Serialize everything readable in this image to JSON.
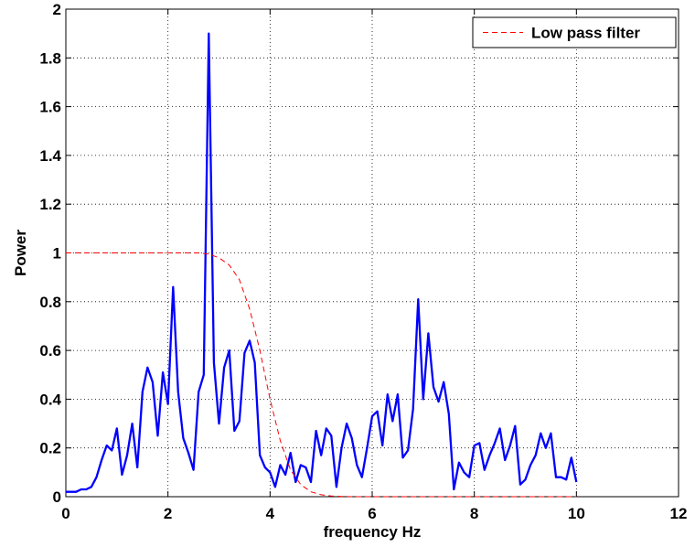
{
  "chart_data": {
    "type": "line",
    "title": "",
    "xlabel": "frequency Hz",
    "ylabel": "Power",
    "xlim": [
      0,
      12
    ],
    "ylim": [
      0,
      2
    ],
    "xticks": [
      0,
      2,
      4,
      6,
      8,
      10,
      12
    ],
    "yticks": [
      0,
      0.2,
      0.4,
      0.6,
      0.8,
      1,
      1.2,
      1.4,
      1.6,
      1.8,
      2
    ],
    "xtick_labels": [
      "0",
      "2",
      "4",
      "6",
      "8",
      "10",
      "12"
    ],
    "ytick_labels": [
      "0",
      "0.2",
      "0.4",
      "0.6",
      "0.8",
      "1",
      "1.2",
      "1.4",
      "1.6",
      "1.8",
      "2"
    ],
    "grid": true,
    "legend": {
      "placement": "top-right",
      "entries": [
        "Low pass filter"
      ]
    },
    "series": [
      {
        "name": "",
        "color": "#0000ff",
        "style": "solid",
        "x": [
          0,
          0.1,
          0.2,
          0.3,
          0.4,
          0.5,
          0.6,
          0.7,
          0.8,
          0.9,
          1.0,
          1.1,
          1.2,
          1.3,
          1.4,
          1.5,
          1.6,
          1.7,
          1.8,
          1.9,
          2.0,
          2.1,
          2.2,
          2.3,
          2.4,
          2.5,
          2.6,
          2.7,
          2.8,
          2.9,
          3.0,
          3.1,
          3.2,
          3.3,
          3.4,
          3.5,
          3.6,
          3.7,
          3.8,
          3.9,
          4.0,
          4.1,
          4.2,
          4.3,
          4.4,
          4.5,
          4.6,
          4.7,
          4.8,
          4.9,
          5.0,
          5.1,
          5.2,
          5.3,
          5.4,
          5.5,
          5.6,
          5.7,
          5.8,
          5.9,
          6.0,
          6.1,
          6.2,
          6.3,
          6.4,
          6.5,
          6.6,
          6.7,
          6.8,
          6.9,
          7.0,
          7.1,
          7.2,
          7.3,
          7.4,
          7.5,
          7.6,
          7.7,
          7.8,
          7.9,
          8.0,
          8.1,
          8.2,
          8.3,
          8.4,
          8.5,
          8.6,
          8.7,
          8.8,
          8.9,
          9.0,
          9.1,
          9.2,
          9.3,
          9.4,
          9.5,
          9.6,
          9.7,
          9.8,
          9.9,
          10.0
        ],
        "y": [
          0.02,
          0.02,
          0.02,
          0.03,
          0.03,
          0.04,
          0.08,
          0.15,
          0.21,
          0.19,
          0.28,
          0.09,
          0.17,
          0.3,
          0.12,
          0.43,
          0.53,
          0.47,
          0.25,
          0.51,
          0.38,
          0.86,
          0.43,
          0.24,
          0.18,
          0.11,
          0.43,
          0.5,
          1.9,
          0.55,
          0.3,
          0.53,
          0.6,
          0.27,
          0.31,
          0.59,
          0.64,
          0.55,
          0.17,
          0.12,
          0.1,
          0.04,
          0.13,
          0.09,
          0.18,
          0.06,
          0.13,
          0.12,
          0.06,
          0.27,
          0.17,
          0.28,
          0.25,
          0.04,
          0.2,
          0.3,
          0.24,
          0.13,
          0.08,
          0.2,
          0.33,
          0.35,
          0.21,
          0.42,
          0.31,
          0.42,
          0.16,
          0.19,
          0.36,
          0.81,
          0.4,
          0.67,
          0.45,
          0.39,
          0.47,
          0.34,
          0.03,
          0.14,
          0.1,
          0.08,
          0.21,
          0.22,
          0.11,
          0.17,
          0.22,
          0.28,
          0.15,
          0.21,
          0.29,
          0.05,
          0.07,
          0.13,
          0.17,
          0.26,
          0.2,
          0.26,
          0.08,
          0.08,
          0.07,
          0.16,
          0.06
        ]
      },
      {
        "name": "Low pass filter",
        "color": "#ff0000",
        "style": "dashed",
        "x": [
          0,
          1,
          2,
          2.4,
          2.6,
          2.8,
          3.0,
          3.2,
          3.4,
          3.6,
          3.8,
          4.0,
          4.2,
          4.4,
          4.6,
          4.8,
          5.0,
          5.2,
          5.4,
          5.6,
          6.0,
          7.0,
          8.0,
          10.0
        ],
        "y": [
          1.0,
          1.0,
          1.0,
          1.0,
          1.0,
          0.995,
          0.98,
          0.95,
          0.89,
          0.77,
          0.6,
          0.4,
          0.23,
          0.11,
          0.05,
          0.02,
          0.008,
          0.003,
          0.001,
          0.0,
          0.0,
          0.0,
          0.0,
          0.0
        ]
      }
    ]
  }
}
